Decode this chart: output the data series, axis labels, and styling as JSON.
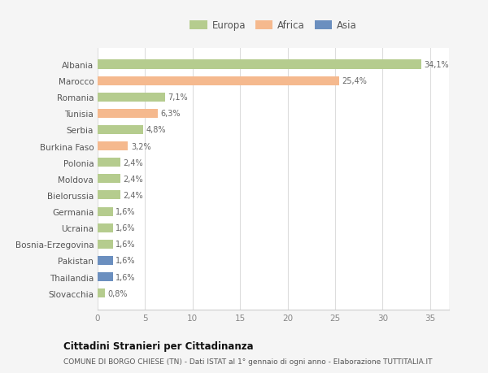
{
  "categories": [
    "Albania",
    "Marocco",
    "Romania",
    "Tunisia",
    "Serbia",
    "Burkina Faso",
    "Polonia",
    "Moldova",
    "Bielorussia",
    "Germania",
    "Ucraina",
    "Bosnia-Erzegovina",
    "Pakistan",
    "Thailandia",
    "Slovacchia"
  ],
  "values": [
    34.1,
    25.4,
    7.1,
    6.3,
    4.8,
    3.2,
    2.4,
    2.4,
    2.4,
    1.6,
    1.6,
    1.6,
    1.6,
    1.6,
    0.8
  ],
  "labels": [
    "34,1%",
    "25,4%",
    "7,1%",
    "6,3%",
    "4,8%",
    "3,2%",
    "2,4%",
    "2,4%",
    "2,4%",
    "1,6%",
    "1,6%",
    "1,6%",
    "1,6%",
    "1,6%",
    "0,8%"
  ],
  "continents": [
    "Europa",
    "Africa",
    "Europa",
    "Africa",
    "Europa",
    "Africa",
    "Europa",
    "Europa",
    "Europa",
    "Europa",
    "Europa",
    "Europa",
    "Asia",
    "Asia",
    "Europa"
  ],
  "colors": {
    "Europa": "#b5cc8e",
    "Africa": "#f5b98e",
    "Asia": "#6b8fbf"
  },
  "legend_labels": [
    "Europa",
    "Africa",
    "Asia"
  ],
  "legend_colors": [
    "#b5cc8e",
    "#f5b98e",
    "#6b8fbf"
  ],
  "title_bold": "Cittadini Stranieri per Cittadinanza",
  "subtitle": "COMUNE DI BORGO CHIESE (TN) - Dati ISTAT al 1° gennaio di ogni anno - Elaborazione TUTTITALIA.IT",
  "xlim": [
    0,
    37
  ],
  "xticks": [
    0,
    5,
    10,
    15,
    20,
    25,
    30,
    35
  ],
  "background_color": "#f5f5f5",
  "plot_bg_color": "#ffffff",
  "grid_color": "#dddddd"
}
